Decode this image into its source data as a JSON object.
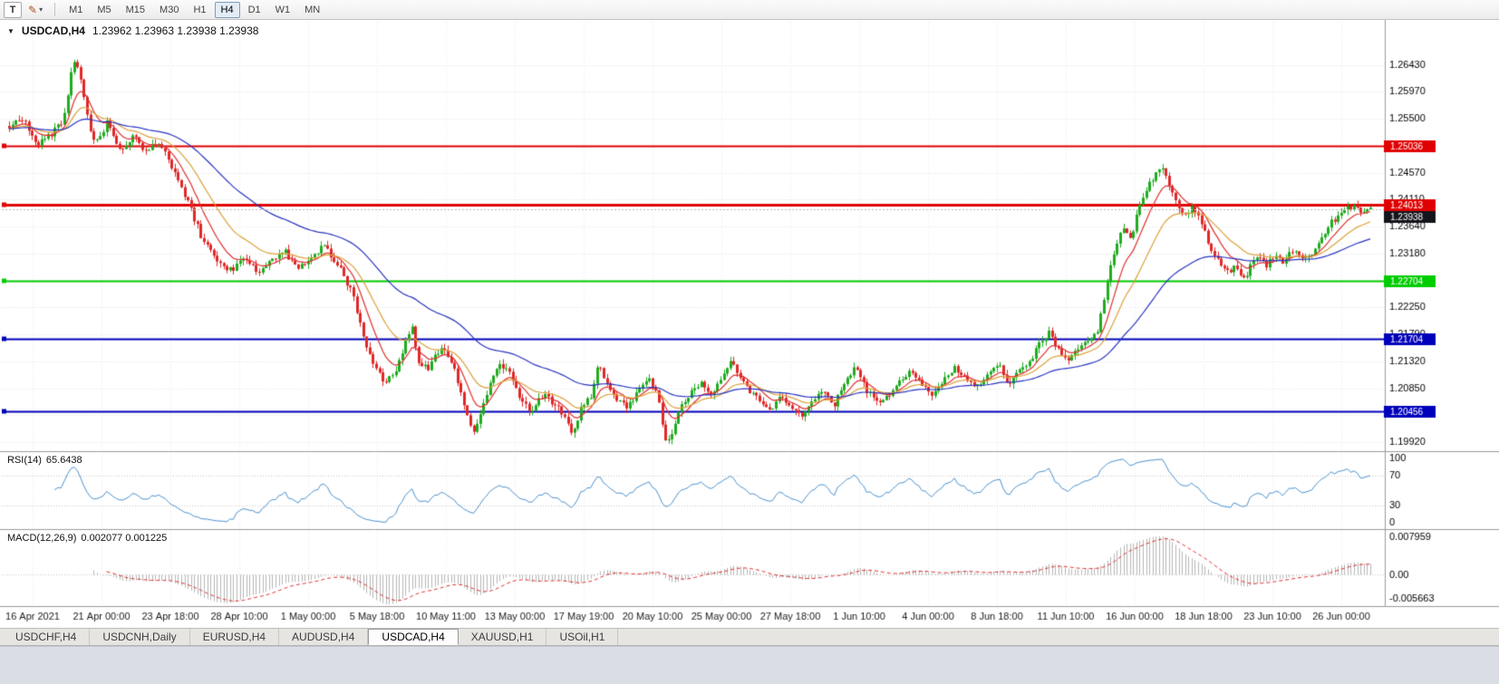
{
  "toolbar": {
    "tool_button": "T",
    "timeframes": [
      "M1",
      "M5",
      "M15",
      "M30",
      "H1",
      "H4",
      "D1",
      "W1",
      "MN"
    ],
    "active_timeframe": "H4"
  },
  "chart": {
    "collapse_icon": "▼",
    "symbol": "USDCAD,H4",
    "ohlc": "1.23962 1.23963 1.23938 1.23938"
  },
  "price_axis": {
    "labels": [
      "1.26430",
      "1.25970",
      "1.25500",
      "1.25040",
      "1.24570",
      "1.24110",
      "1.23640",
      "1.23180",
      "1.22720",
      "1.22250",
      "1.21790",
      "1.21320",
      "1.20850",
      "1.20390",
      "1.19920"
    ]
  },
  "levels": [
    {
      "label": "1.25036",
      "value": 1.25036,
      "color": "#e00000",
      "width": 2
    },
    {
      "label": "1.24013",
      "value": 1.24013,
      "color": "#e00000",
      "width": 3
    },
    {
      "label": "1.22704",
      "value": 1.22704,
      "color": "#00cc00",
      "width": 2
    },
    {
      "label": "1.21704",
      "value": 1.21704,
      "color": "#0000bb",
      "width": 2
    },
    {
      "label": "1.20456",
      "value": 1.20456,
      "color": "#0000bb",
      "width": 2
    }
  ],
  "current_price": {
    "label": "1.23938",
    "value": 1.23938,
    "badge_color": "#14141c"
  },
  "time_axis": [
    "16 Apr 2021",
    "21 Apr 00:00",
    "23 Apr 18:00",
    "28 Apr 10:00",
    "1 May 00:00",
    "5 May 18:00",
    "10 May 11:00",
    "13 May 00:00",
    "17 May 19:00",
    "20 May 10:00",
    "25 May 00:00",
    "27 May 18:00",
    "1 Jun 10:00",
    "4 Jun 00:00",
    "8 Jun 18:00",
    "11 Jun 10:00",
    "16 Jun 00:00",
    "18 Jun 18:00",
    "23 Jun 10:00",
    "26 Jun 00:00"
  ],
  "rsi": {
    "name": "RSI(14)",
    "value": "65.6438",
    "axis_labels": [
      "100",
      "70",
      "30",
      "0"
    ],
    "axis_values": [
      100,
      70,
      30,
      0
    ],
    "guide_levels": [
      70,
      30
    ],
    "line_color": "#4a92d0"
  },
  "macd": {
    "name": "MACD(12,26,9)",
    "values": "0.002077 0.001225",
    "axis_labels": [
      "0.007959",
      "0.00",
      "-0.005663"
    ],
    "range_max": 0.007959,
    "range_min": -0.005663,
    "histogram_color": "#b6b6b6",
    "signal_color": "#e03030"
  },
  "tabs": [
    {
      "label": "USDCHF,H4",
      "active": false
    },
    {
      "label": "USDCNH,Daily",
      "active": false
    },
    {
      "label": "EURUSD,H4",
      "active": false
    },
    {
      "label": "AUDUSD,H4",
      "active": false
    },
    {
      "label": "USDCAD,H4",
      "active": true
    },
    {
      "label": "XAUUSD,H1",
      "active": false
    },
    {
      "label": "USOil,H1",
      "active": false
    }
  ],
  "chart_data": {
    "type": "candlestick",
    "symbol": "USDCAD",
    "timeframe": "H4",
    "x_start": "16 Apr 2021",
    "x_end": "28 Jun 2021",
    "price_range": [
      1.1978,
      1.2718
    ],
    "num_candles": 420,
    "up_color": "#1fab1f",
    "down_color": "#e02828",
    "ma_lines": [
      {
        "period": 9,
        "color": "#e03030"
      },
      {
        "period": 21,
        "color": "#dca23c"
      },
      {
        "period": 55,
        "color": "#2a35c0"
      }
    ],
    "synthesis": {
      "seed": 987654321,
      "close_noise": 0.0011,
      "wick_noise": 0.0009
    },
    "waypoints": [
      [
        0.0,
        1.2538
      ],
      [
        0.01,
        1.2552
      ],
      [
        0.02,
        1.2505
      ],
      [
        0.03,
        1.2522
      ],
      [
        0.04,
        1.2548
      ],
      [
        0.047,
        1.2652
      ],
      [
        0.053,
        1.2618
      ],
      [
        0.058,
        1.2548
      ],
      [
        0.063,
        1.2505
      ],
      [
        0.072,
        1.2545
      ],
      [
        0.082,
        1.2495
      ],
      [
        0.092,
        1.2525
      ],
      [
        0.1,
        1.2492
      ],
      [
        0.11,
        1.2512
      ],
      [
        0.122,
        1.2458
      ],
      [
        0.132,
        1.2402
      ],
      [
        0.142,
        1.2342
      ],
      [
        0.152,
        1.2308
      ],
      [
        0.163,
        1.2288
      ],
      [
        0.172,
        1.2312
      ],
      [
        0.182,
        1.2285
      ],
      [
        0.192,
        1.2302
      ],
      [
        0.202,
        1.2322
      ],
      [
        0.212,
        1.2292
      ],
      [
        0.222,
        1.2315
      ],
      [
        0.232,
        1.2332
      ],
      [
        0.242,
        1.2295
      ],
      [
        0.252,
        1.2248
      ],
      [
        0.26,
        1.2175
      ],
      [
        0.268,
        1.2125
      ],
      [
        0.276,
        1.2095
      ],
      [
        0.284,
        1.2118
      ],
      [
        0.291,
        1.2162
      ],
      [
        0.296,
        1.219
      ],
      [
        0.3,
        1.2135
      ],
      [
        0.308,
        1.2118
      ],
      [
        0.316,
        1.2152
      ],
      [
        0.324,
        1.2138
      ],
      [
        0.33,
        1.209
      ],
      [
        0.336,
        1.2048
      ],
      [
        0.341,
        1.2005
      ],
      [
        0.347,
        1.2052
      ],
      [
        0.354,
        1.2095
      ],
      [
        0.36,
        1.2128
      ],
      [
        0.368,
        1.2108
      ],
      [
        0.376,
        1.2062
      ],
      [
        0.384,
        1.2042
      ],
      [
        0.392,
        1.2075
      ],
      [
        0.4,
        1.2058
      ],
      [
        0.408,
        1.2038
      ],
      [
        0.414,
        1.2005
      ],
      [
        0.42,
        1.2048
      ],
      [
        0.428,
        1.2075
      ],
      [
        0.433,
        1.213
      ],
      [
        0.438,
        1.2095
      ],
      [
        0.446,
        1.2068
      ],
      [
        0.454,
        1.2048
      ],
      [
        0.462,
        1.2085
      ],
      [
        0.47,
        1.2105
      ],
      [
        0.478,
        1.2062
      ],
      [
        0.481,
        1.2
      ],
      [
        0.486,
        1.1998
      ],
      [
        0.492,
        1.2048
      ],
      [
        0.5,
        1.2075
      ],
      [
        0.508,
        1.2092
      ],
      [
        0.516,
        1.2068
      ],
      [
        0.524,
        1.2105
      ],
      [
        0.53,
        1.2135
      ],
      [
        0.536,
        1.211
      ],
      [
        0.544,
        1.2082
      ],
      [
        0.552,
        1.2058
      ],
      [
        0.56,
        1.2042
      ],
      [
        0.566,
        1.2075
      ],
      [
        0.574,
        1.2055
      ],
      [
        0.582,
        1.2038
      ],
      [
        0.59,
        1.2065
      ],
      [
        0.598,
        1.2078
      ],
      [
        0.606,
        1.2058
      ],
      [
        0.614,
        1.2098
      ],
      [
        0.622,
        1.212
      ],
      [
        0.63,
        1.2082
      ],
      [
        0.638,
        1.2058
      ],
      [
        0.646,
        1.2075
      ],
      [
        0.654,
        1.2095
      ],
      [
        0.662,
        1.2118
      ],
      [
        0.67,
        1.2092
      ],
      [
        0.678,
        1.2075
      ],
      [
        0.686,
        1.2098
      ],
      [
        0.694,
        1.212
      ],
      [
        0.702,
        1.2102
      ],
      [
        0.71,
        1.2088
      ],
      [
        0.718,
        1.2105
      ],
      [
        0.726,
        1.2128
      ],
      [
        0.734,
        1.2095
      ],
      [
        0.742,
        1.2118
      ],
      [
        0.75,
        1.2135
      ],
      [
        0.758,
        1.2165
      ],
      [
        0.764,
        1.2182
      ],
      [
        0.77,
        1.2155
      ],
      [
        0.778,
        1.2135
      ],
      [
        0.786,
        1.2158
      ],
      [
        0.794,
        1.2172
      ],
      [
        0.8,
        1.2185
      ],
      [
        0.806,
        1.2262
      ],
      [
        0.812,
        1.2325
      ],
      [
        0.818,
        1.2362
      ],
      [
        0.824,
        1.2345
      ],
      [
        0.83,
        1.2398
      ],
      [
        0.836,
        1.2428
      ],
      [
        0.842,
        1.2458
      ],
      [
        0.847,
        1.2472
      ],
      [
        0.852,
        1.2432
      ],
      [
        0.858,
        1.2402
      ],
      [
        0.864,
        1.2388
      ],
      [
        0.87,
        1.2398
      ],
      [
        0.876,
        1.2368
      ],
      [
        0.882,
        1.2332
      ],
      [
        0.888,
        1.2305
      ],
      [
        0.894,
        1.2285
      ],
      [
        0.9,
        1.2295
      ],
      [
        0.906,
        1.2272
      ],
      [
        0.912,
        1.2295
      ],
      [
        0.918,
        1.2312
      ],
      [
        0.924,
        1.2298
      ],
      [
        0.93,
        1.2318
      ],
      [
        0.936,
        1.2302
      ],
      [
        0.942,
        1.2325
      ],
      [
        0.948,
        1.2312
      ],
      [
        0.954,
        1.2308
      ],
      [
        0.962,
        1.2342
      ],
      [
        0.97,
        1.2368
      ],
      [
        0.978,
        1.2388
      ],
      [
        0.986,
        1.2398
      ],
      [
        0.993,
        1.2392
      ],
      [
        1.0,
        1.2394
      ]
    ]
  }
}
